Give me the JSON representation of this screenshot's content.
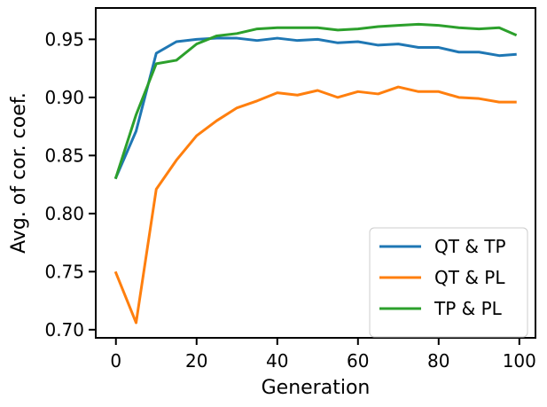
{
  "chart_data": {
    "type": "line",
    "title": "",
    "xlabel": "Generation",
    "ylabel": "Avg. of cor. coef.",
    "xlim": [
      -5,
      104
    ],
    "ylim": [
      0.693,
      0.977
    ],
    "xticks": [
      0,
      20,
      40,
      60,
      80,
      100
    ],
    "xtick_labels": [
      "0",
      "20",
      "40",
      "60",
      "80",
      "100"
    ],
    "yticks": [
      0.7,
      0.75,
      0.8,
      0.85,
      0.9,
      0.95
    ],
    "ytick_labels": [
      "0.70",
      "0.75",
      "0.80",
      "0.85",
      "0.90",
      "0.95"
    ],
    "grid": false,
    "legend_position": "lower-right",
    "x": [
      0,
      5,
      10,
      15,
      20,
      25,
      30,
      35,
      40,
      45,
      50,
      55,
      60,
      65,
      70,
      75,
      80,
      85,
      90,
      95,
      99
    ],
    "series": [
      {
        "name": "QT & TP",
        "color": "#1f77b4",
        "values": [
          0.831,
          0.871,
          0.938,
          0.948,
          0.95,
          0.951,
          0.951,
          0.949,
          0.951,
          0.949,
          0.95,
          0.947,
          0.948,
          0.945,
          0.946,
          0.943,
          0.943,
          0.939,
          0.939,
          0.936,
          0.937
        ]
      },
      {
        "name": "QT & PL",
        "color": "#ff7f0e",
        "values": [
          0.749,
          0.706,
          0.821,
          0.846,
          0.867,
          0.88,
          0.891,
          0.897,
          0.904,
          0.902,
          0.906,
          0.9,
          0.905,
          0.903,
          0.909,
          0.905,
          0.905,
          0.9,
          0.899,
          0.896,
          0.896
        ]
      },
      {
        "name": "TP & PL",
        "color": "#2ca02c",
        "values": [
          0.831,
          0.885,
          0.929,
          0.932,
          0.946,
          0.953,
          0.955,
          0.959,
          0.96,
          0.96,
          0.96,
          0.958,
          0.959,
          0.961,
          0.962,
          0.963,
          0.962,
          0.96,
          0.959,
          0.96,
          0.954
        ]
      }
    ]
  }
}
